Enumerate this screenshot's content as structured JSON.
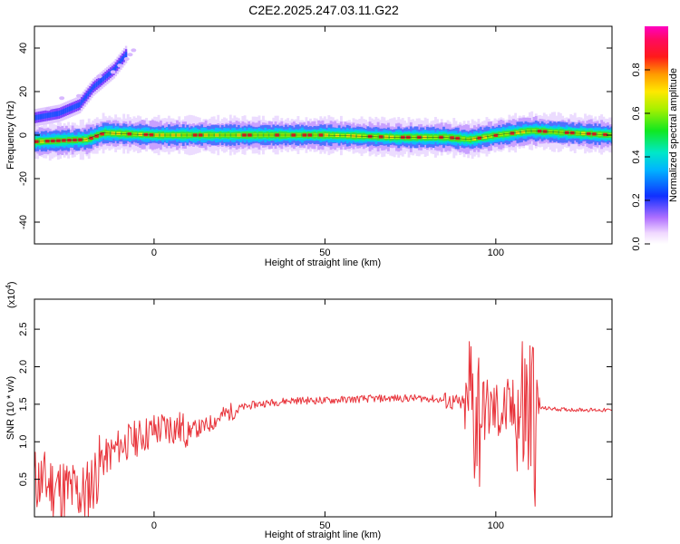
{
  "title": "C2E2.2025.247.03.11.G22",
  "chart_data": [
    {
      "type": "heatmap",
      "name": "spectrogram",
      "xlabel": "Height of straight line (km)",
      "ylabel": "Frequency (Hz)",
      "xlim": [
        -35,
        134
      ],
      "ylim": [
        -50,
        50
      ],
      "xticks": [
        0,
        50,
        100
      ],
      "yticks": [
        -40,
        -20,
        0,
        20,
        40
      ],
      "colorbar": {
        "label": "Normalized spectral amplitude",
        "ticks": [
          "0.0",
          "0.2",
          "0.4",
          "0.6",
          "0.8"
        ],
        "range": [
          0,
          1
        ]
      },
      "ridges": [
        {
          "name": "main-carrier",
          "x": [
            -35,
            -20,
            -15,
            0,
            10,
            30,
            50,
            70,
            85,
            92,
            100,
            110,
            134
          ],
          "y": [
            -3,
            -2,
            1,
            0,
            0,
            0,
            0,
            -1,
            -1,
            -2,
            0,
            2,
            0
          ]
        },
        {
          "name": "secondary-ridge",
          "x": [
            -35,
            -28,
            -22,
            -18,
            -12,
            -8
          ],
          "y": [
            8,
            10,
            14,
            22,
            30,
            38
          ]
        }
      ]
    },
    {
      "type": "line",
      "name": "snr",
      "xlabel": "Height of straight line (km)",
      "ylabel": "SNR (10 * v/v)",
      "yscale_label": "(x10",
      "yscale_exp": "4",
      "xlim": [
        -35,
        134
      ],
      "ylim": [
        0,
        2.9
      ],
      "xticks": [
        0,
        50,
        100
      ],
      "yticks": [
        "0.5",
        "1.0",
        "1.5",
        "2.0",
        "2.5"
      ],
      "color": "#e8333a",
      "trend": {
        "x": [
          -35,
          -25,
          -20,
          -15,
          -10,
          -5,
          0,
          5,
          10,
          15,
          20,
          25,
          30,
          40,
          50,
          60,
          70,
          80,
          85,
          90,
          95,
          100,
          105,
          110,
          113,
          120,
          134
        ],
        "y": [
          0.5,
          0.35,
          0.3,
          0.75,
          0.95,
          1.05,
          1.15,
          1.2,
          1.15,
          1.2,
          1.35,
          1.45,
          1.5,
          1.55,
          1.55,
          1.57,
          1.58,
          1.58,
          1.55,
          1.5,
          1.45,
          1.4,
          1.4,
          1.4,
          1.45,
          1.43,
          1.42
        ]
      }
    }
  ]
}
